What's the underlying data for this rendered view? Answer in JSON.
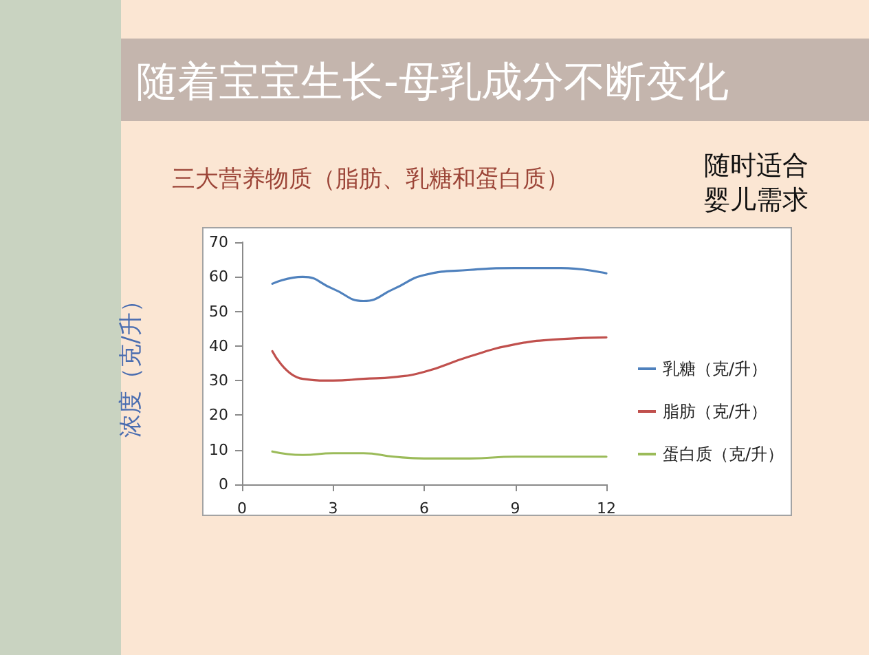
{
  "chart_data": {
    "type": "line",
    "title": "随着宝宝生长-母乳成分不断变化",
    "subtitle": "三大营养物质（脂肪、乳糖和蛋白质）",
    "ylabel": "浓度（克/升）",
    "annotations": [
      "随时适合婴儿需求"
    ],
    "x": [
      1,
      2,
      3,
      4,
      5,
      6,
      7.5,
      9,
      10.5,
      12
    ],
    "series": [
      {
        "name": "乳糖（克/升）",
        "color": "#4f81bd",
        "values": [
          58,
          60,
          56.5,
          53,
          56.5,
          60.5,
          62,
          62.5,
          62.5,
          61
        ]
      },
      {
        "name": "脂肪（克/升）",
        "color": "#c0504d",
        "values": [
          38.5,
          30.5,
          30,
          30.5,
          31,
          32.5,
          37,
          40.5,
          42,
          42.5
        ]
      },
      {
        "name": "蛋白质（克/升）",
        "color": "#9bbb59",
        "values": [
          9.5,
          8.5,
          9,
          9,
          8,
          7.5,
          7.5,
          8,
          8,
          8
        ]
      }
    ],
    "xlim": [
      0,
      12
    ],
    "xticks": [
      0,
      3,
      6,
      9,
      12
    ],
    "ylim": [
      0,
      70
    ],
    "yticks": [
      0,
      10,
      20,
      30,
      40,
      50,
      60,
      70
    ],
    "grid": false,
    "legend": "right",
    "marker": "none",
    "line_style": "solid"
  }
}
